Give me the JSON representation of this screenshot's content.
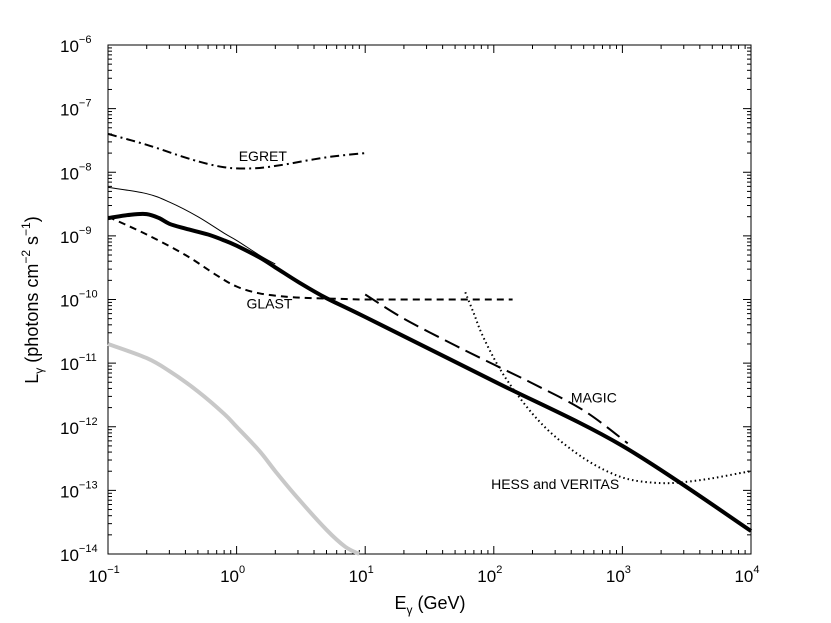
{
  "chart_data": {
    "type": "line",
    "xscale": "log",
    "yscale": "log",
    "xlim": [
      0.1,
      10000
    ],
    "ylim": [
      1e-14,
      1e-06
    ],
    "xlabel": {
      "base": "E",
      "sub": "γ",
      "rest": " (GeV)"
    },
    "ylabel": {
      "base": "L",
      "sub": "γ",
      "a": " (photons cm",
      "sup1": "−2",
      "b": " s",
      "sup2": "−1",
      "c": ")"
    },
    "xticks": [
      {
        "value": 0.1,
        "base": "10",
        "exp": "−1"
      },
      {
        "value": 1,
        "base": "10",
        "exp": "0"
      },
      {
        "value": 10,
        "base": "10",
        "exp": "1"
      },
      {
        "value": 100,
        "base": "10",
        "exp": "2"
      },
      {
        "value": 1000,
        "base": "10",
        "exp": "3"
      },
      {
        "value": 10000,
        "base": "10",
        "exp": "4"
      }
    ],
    "yticks": [
      {
        "value": 1e-14,
        "base": "10",
        "exp": "−14"
      },
      {
        "value": 1e-13,
        "base": "10",
        "exp": "−13"
      },
      {
        "value": 1e-12,
        "base": "10",
        "exp": "−12"
      },
      {
        "value": 1e-11,
        "base": "10",
        "exp": "−11"
      },
      {
        "value": 1e-10,
        "base": "10",
        "exp": "−10"
      },
      {
        "value": 1e-09,
        "base": "10",
        "exp": "−9"
      },
      {
        "value": 1e-08,
        "base": "10",
        "exp": "−8"
      },
      {
        "value": 1e-07,
        "base": "10",
        "exp": "−7"
      },
      {
        "value": 1e-06,
        "base": "10",
        "exp": "−6"
      }
    ],
    "series": [
      {
        "name": "EGRET",
        "style": "dashdot",
        "color": "#000000",
        "x": [
          0.1,
          0.2,
          0.4,
          0.6,
          0.8,
          1.0,
          1.3,
          1.7,
          2.5,
          4.0,
          6.0,
          10.0
        ],
        "y": [
          4e-08,
          2.7e-08,
          1.7e-08,
          1.35e-08,
          1.2e-08,
          1.15e-08,
          1.15e-08,
          1.2e-08,
          1.35e-08,
          1.6e-08,
          1.8e-08,
          2e-08
        ]
      },
      {
        "name": "GLAST",
        "style": "dashed",
        "color": "#000000",
        "x": [
          0.1,
          0.2,
          0.4,
          0.7,
          1.0,
          1.5,
          2.5,
          4.0,
          7.0,
          10,
          30,
          100,
          140
        ],
        "y": [
          2e-09,
          1.05e-09,
          5e-10,
          2.4e-10,
          1.6e-10,
          1.25e-10,
          1.1e-10,
          1.05e-10,
          1.02e-10,
          1e-10,
          1e-10,
          1e-10,
          1e-10
        ]
      },
      {
        "name": "MAGIC",
        "style": "longdash",
        "color": "#000000",
        "x": [
          10,
          20,
          50,
          100,
          200,
          500,
          1100
        ],
        "y": [
          1.2e-10,
          5e-11,
          1.9e-11,
          9.5e-12,
          4.8e-12,
          1.8e-12,
          5.5e-13
        ]
      },
      {
        "name": "HESS and VERITAS",
        "style": "dotted",
        "color": "#000000",
        "x": [
          60,
          70,
          80,
          100,
          130,
          200,
          300,
          500,
          800,
          1200,
          2000,
          3000,
          5000,
          8000,
          10000
        ],
        "y": [
          1.3e-10,
          6e-11,
          3e-11,
          1.2e-11,
          5e-12,
          1.6e-12,
          7e-13,
          3.2e-13,
          1.9e-13,
          1.45e-13,
          1.3e-13,
          1.35e-13,
          1.55e-13,
          1.85e-13,
          2e-13
        ]
      },
      {
        "name": "prediction-thin",
        "style": "thin",
        "color": "#000000",
        "x": [
          0.1,
          0.2,
          0.3,
          0.5,
          0.8,
          1.0,
          1.5,
          2.0
        ],
        "y": [
          5.8e-09,
          4.6e-09,
          3.4e-09,
          2e-09,
          1.1e-09,
          8.5e-10,
          5e-10,
          3.6e-10
        ]
      },
      {
        "name": "prediction-total",
        "style": "thick",
        "color": "#000000",
        "x": [
          0.1,
          0.15,
          0.2,
          0.25,
          0.3,
          0.4,
          0.6,
          0.8,
          1.0,
          1.5,
          2.0,
          3.0,
          5.0,
          10,
          100,
          1000,
          10000
        ],
        "y": [
          1.9e-09,
          2.15e-09,
          2.2e-09,
          1.9e-09,
          1.55e-09,
          1.3e-09,
          1.05e-09,
          8.5e-10,
          7e-10,
          4.6e-10,
          3.2e-10,
          1.9e-10,
          1.05e-10,
          5.3e-11,
          5.2e-12,
          5e-13,
          2.3e-14
        ]
      },
      {
        "name": "prediction-gray",
        "style": "gray",
        "color": "#c8c8c8",
        "x": [
          0.1,
          0.2,
          0.3,
          0.5,
          0.8,
          1.0,
          1.5,
          2.0,
          3.0,
          5.0,
          7.0,
          9.0
        ],
        "y": [
          2e-11,
          1.2e-11,
          7.5e-12,
          3.6e-12,
          1.6e-12,
          1e-12,
          4.2e-13,
          2e-13,
          7.5e-14,
          2.4e-14,
          1.3e-14,
          1e-14
        ]
      }
    ],
    "annotations": [
      {
        "text": "EGRET",
        "x": 1.6,
        "y": 1.5e-08
      },
      {
        "text": "GLAST",
        "x": 1.8,
        "y": 7.2e-11
      },
      {
        "text": "MAGIC",
        "x": 600,
        "y": 2.4e-12
      },
      {
        "text": "HESS and VERITAS",
        "x": 300,
        "y": 1.05e-13
      }
    ]
  }
}
